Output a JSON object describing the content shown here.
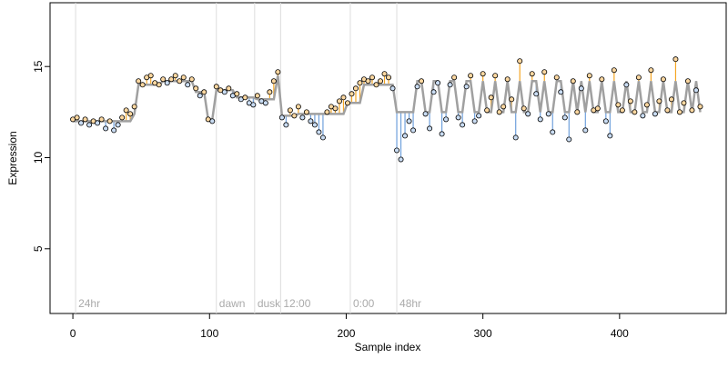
{
  "chart_data": {
    "type": "scatter",
    "xlabel": "Sample index",
    "ylabel": "Expression",
    "xlim": [
      -16.7,
      478
    ],
    "ylim": [
      1.45,
      18.5
    ],
    "xticks": [
      0,
      100,
      200,
      300,
      400
    ],
    "yticks": [
      5,
      10,
      15
    ],
    "pos_color": "#f5a623",
    "neg_color": "#6fa0dc",
    "fit_color": "#a0a0a0",
    "annotation_color": "#dddddd",
    "annotations": [
      {
        "x": 2,
        "label": "24hr"
      },
      {
        "x": 105,
        "label": "dawn"
      },
      {
        "x": 133,
        "label": "dusk"
      },
      {
        "x": 152,
        "label": "12:00"
      },
      {
        "x": 203,
        "label": "0:00"
      },
      {
        "x": 237,
        "label": "48hr"
      }
    ],
    "x": [
      0,
      3,
      6,
      9,
      12,
      15,
      18,
      21,
      24,
      27,
      30,
      33,
      36,
      39,
      42,
      45,
      48,
      51,
      54,
      57,
      60,
      63,
      66,
      69,
      72,
      75,
      78,
      81,
      84,
      87,
      90,
      93,
      96,
      99,
      102,
      105,
      108,
      111,
      114,
      117,
      120,
      123,
      126,
      129,
      132,
      135,
      138,
      141,
      144,
      147,
      150,
      153,
      156,
      159,
      162,
      165,
      168,
      171,
      174,
      177,
      180,
      183,
      186,
      189,
      192,
      195,
      198,
      201,
      204,
      207,
      210,
      213,
      216,
      219,
      222,
      225,
      228,
      231,
      234,
      237,
      240,
      243,
      246,
      249,
      252,
      255,
      258,
      261,
      264,
      267,
      270,
      273,
      276,
      279,
      282,
      285,
      288,
      291,
      294,
      297,
      300,
      303,
      306,
      309,
      312,
      315,
      318,
      321,
      324,
      327,
      330,
      333,
      336,
      339,
      342,
      345,
      348,
      351,
      354,
      357,
      360,
      363,
      366,
      369,
      372,
      375,
      378,
      381,
      384,
      387,
      390,
      393,
      396,
      399,
      402,
      405,
      408,
      411,
      414,
      417,
      420,
      423,
      426,
      429,
      432,
      435,
      438,
      441,
      444,
      447,
      450,
      453,
      456,
      459
    ],
    "series": [
      {
        "color": "#000000",
        "values": [
          12.1,
          12.2,
          11.9,
          12.1,
          11.8,
          12.0,
          11.9,
          12.1,
          11.6,
          12.0,
          11.5,
          11.8,
          12.2,
          12.6,
          12.4,
          12.8,
          14.2,
          14.0,
          14.4,
          14.5,
          14.1,
          14.0,
          14.3,
          14.1,
          14.3,
          14.5,
          14.2,
          14.4,
          14.0,
          14.3,
          13.8,
          13.4,
          13.6,
          12.1,
          12.0,
          13.9,
          13.7,
          13.6,
          13.8,
          13.4,
          13.5,
          13.2,
          13.3,
          13.0,
          12.9,
          13.4,
          13.1,
          13.0,
          13.6,
          14.2,
          14.7,
          12.2,
          11.8,
          12.6,
          12.3,
          12.8,
          12.2,
          12.5,
          12.0,
          11.8,
          11.4,
          11.1,
          12.5,
          12.8,
          12.7,
          13.1,
          13.3,
          13.0,
          13.5,
          13.8,
          14.1,
          14.3,
          14.2,
          14.4,
          14.0,
          14.2,
          14.6,
          14.4,
          13.8,
          10.4,
          9.9,
          11.2,
          12.0,
          11.5,
          13.9,
          14.2,
          12.4,
          11.6,
          13.6,
          14.1,
          11.3,
          12.1,
          14.0,
          14.4,
          12.2,
          11.8,
          13.9,
          14.5,
          12.0,
          12.3,
          14.6,
          12.6,
          13.3,
          14.5,
          12.5,
          12.8,
          14.3,
          13.2,
          11.1,
          15.3,
          12.7,
          12.4,
          14.6,
          13.5,
          12.1,
          14.7,
          12.4,
          11.4,
          14.4,
          13.6,
          12.2,
          11.0,
          14.2,
          12.5,
          13.8,
          11.5,
          14.5,
          12.6,
          12.7,
          14.3,
          12.0,
          11.2,
          14.8,
          12.9,
          12.6,
          14.0,
          13.1,
          12.5,
          14.4,
          12.3,
          12.9,
          14.8,
          12.4,
          13.1,
          14.3,
          12.6,
          13.2,
          15.4,
          12.5,
          13.0,
          14.2,
          12.6,
          13.7,
          12.8
        ]
      },
      {
        "color": "#a0a0a0",
        "values": [
          12.0,
          12.0,
          12.0,
          12.0,
          12.0,
          12.0,
          12.0,
          12.0,
          12.0,
          12.0,
          12.0,
          12.0,
          12.0,
          12.0,
          12.0,
          12.4,
          14.0,
          14.0,
          14.0,
          14.0,
          14.0,
          14.0,
          14.2,
          14.2,
          14.2,
          14.2,
          14.2,
          14.2,
          14.2,
          14.2,
          13.6,
          13.6,
          13.6,
          12.1,
          12.1,
          13.7,
          13.7,
          13.7,
          13.7,
          13.7,
          13.3,
          13.3,
          13.3,
          13.3,
          13.3,
          13.2,
          13.2,
          13.2,
          13.2,
          13.2,
          14.5,
          12.3,
          12.3,
          12.3,
          12.3,
          12.4,
          12.4,
          12.4,
          12.4,
          12.4,
          12.4,
          12.4,
          12.4,
          12.4,
          12.4,
          12.4,
          12.4,
          13.0,
          13.0,
          13.0,
          13.0,
          14.0,
          14.0,
          14.0,
          14.0,
          14.0,
          14.0,
          14.0,
          14.0,
          12.5,
          12.5,
          12.5,
          12.5,
          12.5,
          14.2,
          14.2,
          12.5,
          12.5,
          14.2,
          14.2,
          12.5,
          12.5,
          14.2,
          14.2,
          12.5,
          12.5,
          14.2,
          14.2,
          12.5,
          12.5,
          14.2,
          12.5,
          12.5,
          14.2,
          12.5,
          12.5,
          14.2,
          12.5,
          12.5,
          14.2,
          12.5,
          12.5,
          14.2,
          14.2,
          12.5,
          14.2,
          12.5,
          12.5,
          14.2,
          14.2,
          12.5,
          12.5,
          14.2,
          12.5,
          14.2,
          12.5,
          14.2,
          12.5,
          12.5,
          14.2,
          12.5,
          12.5,
          14.2,
          12.5,
          12.5,
          14.2,
          12.5,
          12.5,
          14.2,
          12.5,
          12.5,
          14.2,
          12.5,
          12.5,
          14.2,
          12.5,
          12.5,
          14.2,
          12.5,
          12.5,
          14.2,
          12.5,
          14.2,
          12.5
        ]
      }
    ]
  }
}
